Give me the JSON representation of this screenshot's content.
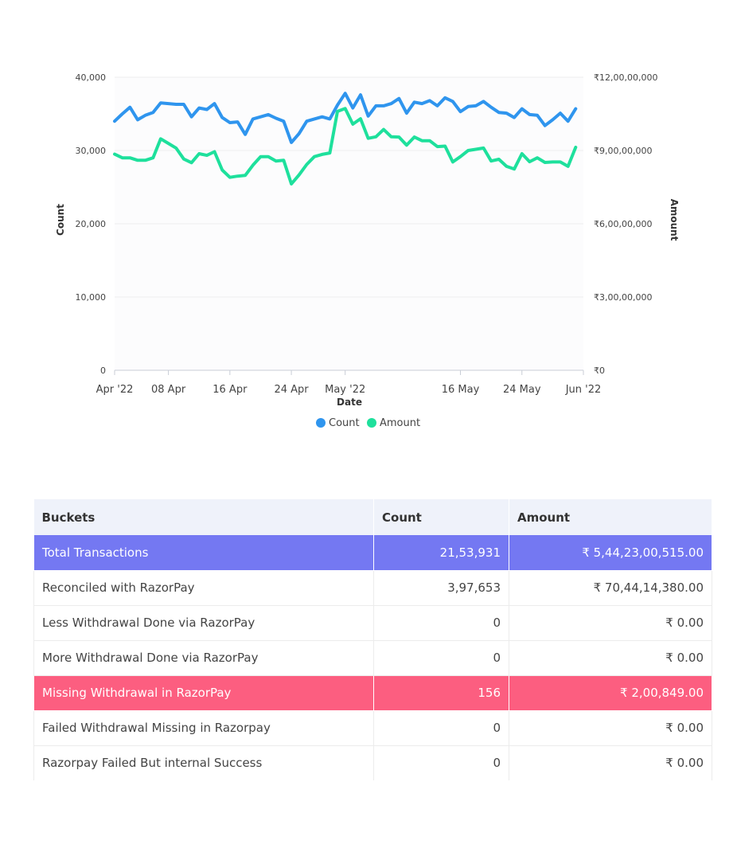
{
  "chart_data": {
    "type": "line",
    "xlabel": "Date",
    "ylabel": "Count",
    "y2label": "Amount",
    "ylim": [
      0,
      40000
    ],
    "y2lim": [
      0,
      120000000
    ],
    "yticks": [
      "0",
      "10,000",
      "20,000",
      "30,000",
      "40,000"
    ],
    "y2ticks": [
      "₹0",
      "₹3,00,00,000",
      "₹6,00,00,000",
      "₹9,00,00,000",
      "₹12,00,00,000"
    ],
    "xticks": [
      {
        "day": 0,
        "label": "Apr '22"
      },
      {
        "day": 7,
        "label": "08 Apr"
      },
      {
        "day": 15,
        "label": "16 Apr"
      },
      {
        "day": 23,
        "label": "24 Apr"
      },
      {
        "day": 30,
        "label": "May '22"
      },
      {
        "day": 45,
        "label": "16 May"
      },
      {
        "day": 53,
        "label": "24 May"
      },
      {
        "day": 61,
        "label": "Jun '22"
      }
    ],
    "x_days": [
      0,
      1,
      2,
      3,
      4,
      5,
      6,
      7,
      8,
      9,
      10,
      11,
      12,
      13,
      14,
      15,
      16,
      17,
      18,
      19,
      20,
      21,
      22,
      23,
      24,
      25,
      26,
      27,
      28,
      29,
      30,
      31,
      32,
      33,
      34,
      35,
      36,
      37,
      38,
      39,
      40,
      41,
      42,
      43,
      44,
      45,
      46,
      47,
      48,
      49,
      50,
      51,
      52,
      53,
      54,
      55,
      56,
      57,
      58,
      59,
      60
    ],
    "grid": true,
    "legend_position": "bottom",
    "series": [
      {
        "name": "Count",
        "axis": "left",
        "color": "#2f95ee",
        "values": [
          34000,
          35000,
          35900,
          34200,
          34800,
          35200,
          36500,
          36400,
          36300,
          36300,
          34600,
          35800,
          35600,
          36400,
          34500,
          33800,
          33900,
          32200,
          34300,
          34600,
          34900,
          34400,
          34000,
          31100,
          32300,
          34000,
          34300,
          34600,
          34300,
          36200,
          37800,
          35800,
          37600,
          34700,
          36100,
          36100,
          36400,
          37100,
          35100,
          36600,
          36400,
          36800,
          36100,
          37200,
          36700,
          35300,
          36000,
          36100,
          36700,
          35900,
          35200,
          35100,
          34500,
          35700,
          34900,
          34800,
          33400,
          34200,
          35100,
          34000,
          35700
        ]
      },
      {
        "name": "Amount",
        "axis": "right",
        "color": "#1ee09c",
        "values": [
          88500000,
          87000000,
          87000000,
          86000000,
          86000000,
          87000000,
          94800000,
          92900000,
          91000000,
          86500000,
          85000000,
          88700000,
          88000000,
          89500000,
          82000000,
          79000000,
          79500000,
          79800000,
          84000000,
          87500000,
          87500000,
          85700000,
          86000000,
          76300000,
          80000000,
          84300000,
          87500000,
          88400000,
          89000000,
          106000000,
          107200000,
          100800000,
          103000000,
          95000000,
          95600000,
          98600000,
          95600000,
          95500000,
          92200000,
          95500000,
          94000000,
          94000000,
          91600000,
          91800000,
          85300000,
          87500000,
          90000000,
          90500000,
          91000000,
          85700000,
          86400000,
          83500000,
          82400000,
          88700000,
          85400000,
          87000000,
          85100000,
          85300000,
          85300000,
          83500000,
          91300000
        ]
      }
    ]
  },
  "table": {
    "headers": {
      "buckets": "Buckets",
      "count": "Count",
      "amount": "Amount"
    },
    "rows": [
      {
        "label": "Total Transactions",
        "count": "21,53,931",
        "amount": "₹ 5,44,23,00,515.00"
      },
      {
        "label": "Reconciled with RazorPay",
        "count": "3,97,653",
        "amount": "₹ 70,44,14,380.00"
      },
      {
        "label": "Less Withdrawal Done via RazorPay",
        "count": "0",
        "amount": "₹ 0.00"
      },
      {
        "label": "More Withdrawal Done via RazorPay",
        "count": "0",
        "amount": "₹ 0.00"
      },
      {
        "label": "Missing Withdrawal in RazorPay",
        "count": "156",
        "amount": "₹ 2,00,849.00"
      },
      {
        "label": "Failed Withdrawal Missing in Razorpay",
        "count": "0",
        "amount": "₹ 0.00"
      },
      {
        "label": "Razorpay Failed But internal Success",
        "count": "0",
        "amount": "₹ 0.00"
      }
    ]
  }
}
